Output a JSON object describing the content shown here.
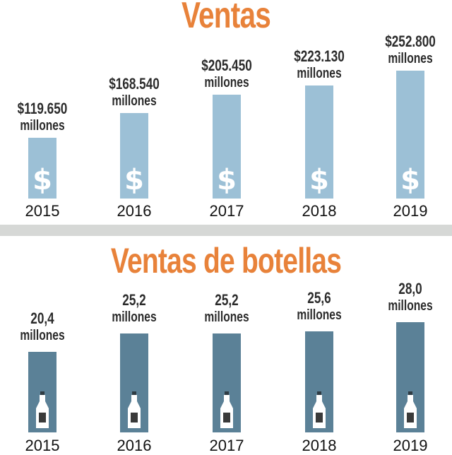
{
  "chart_data": [
    {
      "type": "bar",
      "title": "Ventas",
      "categories": [
        "2015",
        "2016",
        "2017",
        "2018",
        "2019"
      ],
      "values": [
        119650,
        168540,
        205450,
        223130,
        252800
      ],
      "data_labels": [
        "$119.650",
        "$168.540",
        "$205.450",
        "$223.130",
        "$252.800"
      ],
      "unit_label": "millones",
      "bar_symbol": "$",
      "bar_color": "#9cc0d6",
      "grid": false,
      "ylim": [
        0,
        252800
      ]
    },
    {
      "type": "bar",
      "title": "Ventas de botellas",
      "categories": [
        "2015",
        "2016",
        "2017",
        "2018",
        "2019"
      ],
      "values": [
        20.4,
        25.2,
        25.2,
        25.6,
        28.0
      ],
      "data_labels": [
        "20,4",
        "25,2",
        "25,2",
        "25,6",
        "28,0"
      ],
      "unit_label": "millones",
      "bar_icon": "bottle-icon",
      "bar_color": "#5b8197",
      "grid": false,
      "ylim": [
        0,
        28.0
      ]
    }
  ],
  "colors": {
    "title": "#e8823a",
    "divider": "#d6d8d6",
    "text": "#2b2b2b"
  }
}
